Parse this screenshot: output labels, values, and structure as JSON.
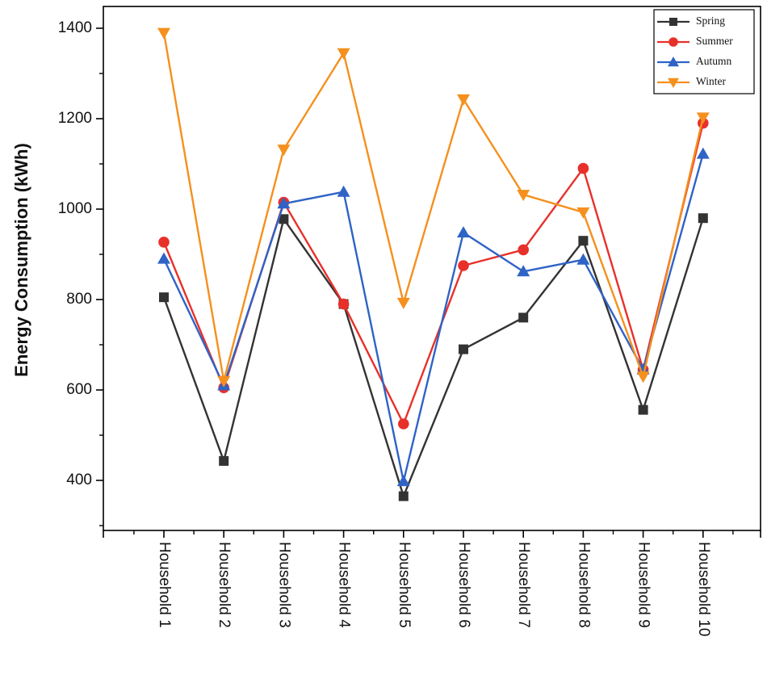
{
  "chart_data": {
    "type": "line",
    "title": "",
    "xlabel": "",
    "ylabel": "Energy Consumption (kWh)",
    "categories": [
      "Household 1",
      "Household 2",
      "Household 3",
      "Household 4",
      "Household 5",
      "Household 6",
      "Household 7",
      "Household 8",
      "Household 9",
      "Household 10"
    ],
    "ylim": [
      300,
      1450
    ],
    "yticks": [
      400,
      600,
      800,
      1000,
      1200,
      1400
    ],
    "yticks_labels": [
      "400",
      "600",
      "800",
      "1000",
      "1200",
      "1400"
    ],
    "grid": false,
    "legend_position": "top-right",
    "series": [
      {
        "name": "Spring",
        "color": "#333333",
        "marker": "square",
        "values": [
          805,
          443,
          978,
          790,
          365,
          690,
          760,
          930,
          556,
          980
        ]
      },
      {
        "name": "Summer",
        "color": "#e8302a",
        "marker": "circle",
        "values": [
          927,
          605,
          1015,
          790,
          525,
          875,
          910,
          1090,
          645,
          1190
        ]
      },
      {
        "name": "Autumn",
        "color": "#2f63c6",
        "marker": "triangle-up",
        "values": [
          890,
          610,
          1012,
          1038,
          398,
          948,
          862,
          888,
          645,
          1122
        ]
      },
      {
        "name": "Winter",
        "color": "#f5901e",
        "marker": "triangle-down",
        "values": [
          1390,
          620,
          1132,
          1345,
          793,
          1243,
          1032,
          993,
          630,
          1203
        ]
      }
    ]
  }
}
